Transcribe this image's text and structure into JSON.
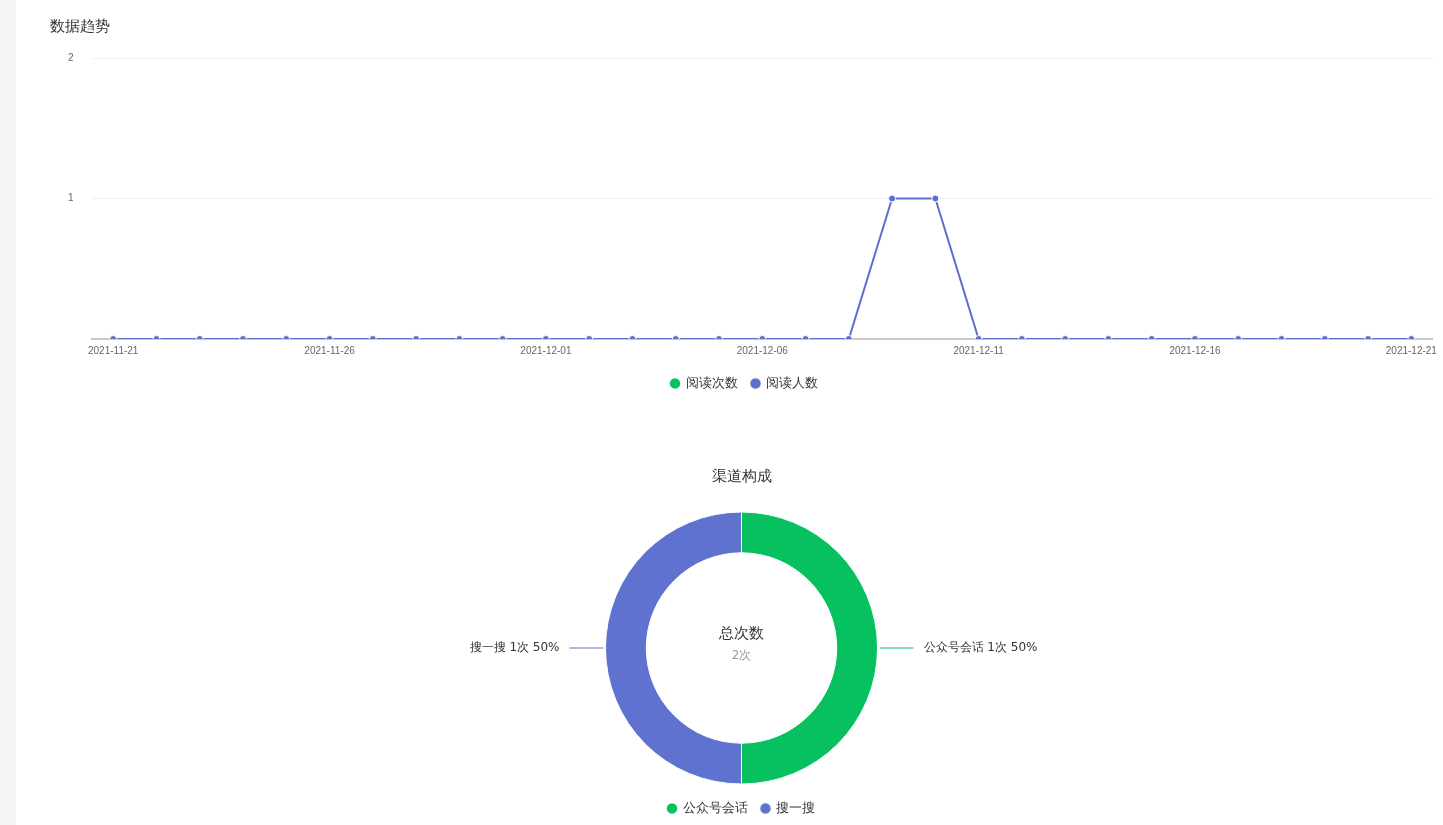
{
  "chart_data": [
    {
      "type": "line",
      "title": "数据趋势",
      "categories": [
        "2021-11-21",
        null,
        null,
        null,
        null,
        "2021-11-26",
        null,
        null,
        null,
        null,
        "2021-12-01",
        null,
        null,
        null,
        null,
        "2021-12-06",
        null,
        null,
        null,
        null,
        "2021-12-11",
        null,
        null,
        null,
        null,
        "2021-12-16",
        null,
        null,
        null,
        null,
        "2021-12-21"
      ],
      "series": [
        {
          "name": "阅读次数",
          "color": "#07c160",
          "values": [
            null,
            null,
            null,
            null,
            null,
            null,
            null,
            null,
            null,
            null,
            null,
            null,
            null,
            null,
            null,
            null,
            null,
            null,
            null,
            null,
            null,
            null,
            null,
            null,
            null,
            null,
            null,
            null,
            null,
            null,
            null
          ]
        },
        {
          "name": "阅读人数",
          "color": "#5b6fcb",
          "values": [
            0,
            0,
            0,
            0,
            0,
            0,
            0,
            0,
            0,
            0,
            0,
            0,
            0,
            0,
            0,
            0,
            0,
            0,
            1,
            1,
            0,
            0,
            0,
            0,
            0,
            0,
            0,
            0,
            0,
            0,
            0
          ]
        }
      ],
      "ylim": [
        0,
        2
      ],
      "yticks": [
        {
          "value": 0,
          "label": null
        },
        1,
        2
      ],
      "grid": "y",
      "legend": "bottom",
      "marker": "circle",
      "line_style": "solid"
    },
    {
      "type": "donut",
      "title": "渠道构成",
      "categories": [
        "公众号会话",
        "搜一搜"
      ],
      "values": [
        1,
        1
      ],
      "colors": [
        "#07c160",
        "#5f72cf"
      ],
      "value_labels": [
        "公众号会话 1次 50%",
        "搜一搜 1次 50%"
      ],
      "annotations": [
        "总次数",
        "2次"
      ],
      "legend": "bottom"
    }
  ]
}
